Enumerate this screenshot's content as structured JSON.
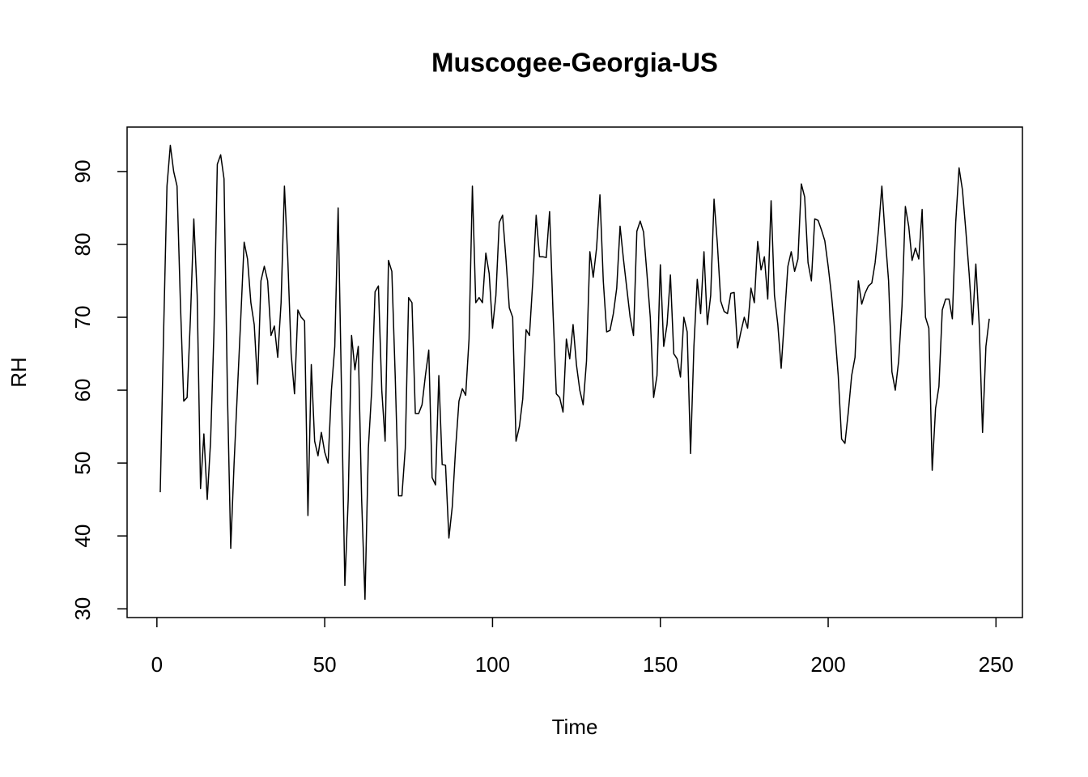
{
  "chart_data": {
    "type": "line",
    "title": "Muscogee-Georgia-US",
    "xlabel": "Time",
    "ylabel": "RH",
    "color": "#000000",
    "xlim": [
      -8.88,
      257.88
    ],
    "ylim": [
      28.8,
      96.1
    ],
    "xticks": [
      0,
      50,
      100,
      150,
      200,
      250
    ],
    "yticks": [
      30,
      40,
      50,
      60,
      70,
      80,
      90
    ],
    "x": [
      1,
      2,
      3,
      4,
      5,
      6,
      7,
      8,
      9,
      10,
      11,
      12,
      13,
      14,
      15,
      16,
      17,
      18,
      19,
      20,
      21,
      22,
      23,
      24,
      25,
      26,
      27,
      28,
      29,
      30,
      31,
      32,
      33,
      34,
      35,
      36,
      37,
      38,
      39,
      40,
      41,
      42,
      43,
      44,
      45,
      46,
      47,
      48,
      49,
      50,
      51,
      52,
      53,
      54,
      55,
      56,
      57,
      58,
      59,
      60,
      61,
      62,
      63,
      64,
      65,
      66,
      67,
      68,
      69,
      70,
      71,
      72,
      73,
      74,
      75,
      76,
      77,
      78,
      79,
      80,
      81,
      82,
      83,
      84,
      85,
      86,
      87,
      88,
      89,
      90,
      91,
      92,
      93,
      94,
      95,
      96,
      97,
      98,
      99,
      100,
      101,
      102,
      103,
      104,
      105,
      106,
      107,
      108,
      109,
      110,
      111,
      112,
      113,
      114,
      115,
      116,
      117,
      118,
      119,
      120,
      121,
      122,
      123,
      124,
      125,
      126,
      127,
      128,
      129,
      130,
      131,
      132,
      133,
      134,
      135,
      136,
      137,
      138,
      139,
      140,
      141,
      142,
      143,
      144,
      145,
      146,
      147,
      148,
      149,
      150,
      151,
      152,
      153,
      154,
      155,
      156,
      157,
      158,
      159,
      160,
      161,
      162,
      163,
      164,
      165,
      166,
      167,
      168,
      169,
      170,
      171,
      172,
      173,
      174,
      175,
      176,
      177,
      178,
      179,
      180,
      181,
      182,
      183,
      184,
      185,
      186,
      187,
      188,
      189,
      190,
      191,
      192,
      193,
      194,
      195,
      196,
      197,
      198,
      199,
      200,
      201,
      202,
      203,
      204,
      205,
      206,
      207,
      208,
      209,
      210,
      211,
      212,
      213,
      214,
      215,
      216,
      217,
      218,
      219,
      220,
      221,
      222,
      223,
      224,
      225,
      226,
      227,
      228,
      229,
      230,
      231,
      232,
      233,
      234,
      235,
      236,
      237,
      238,
      239,
      240,
      241,
      242,
      243,
      244,
      245,
      246,
      247,
      248
    ],
    "values": [
      46,
      68,
      88,
      93.6,
      90,
      88,
      72,
      58.5,
      59,
      70,
      83.5,
      73,
      46.5,
      54,
      45,
      53,
      68,
      91,
      92.3,
      89,
      60,
      38.3,
      50,
      60,
      70,
      80.3,
      78,
      72,
      69,
      60.8,
      75,
      77,
      75,
      67.5,
      68.8,
      64.5,
      72,
      88,
      78,
      65,
      59.5,
      71,
      70,
      69.5,
      42.8,
      63.5,
      53,
      51,
      54.2,
      51.5,
      50,
      60,
      66,
      85,
      60,
      33.2,
      45,
      67.5,
      62.8,
      66,
      45,
      31.3,
      52,
      60,
      73.5,
      74.3,
      60,
      53,
      77.8,
      76.3,
      62,
      45.5,
      45.5,
      52,
      72.7,
      72,
      56.8,
      56.8,
      58,
      62,
      65.5,
      48,
      47,
      62,
      49.8,
      49.7,
      39.7,
      44,
      52,
      58.5,
      60.2,
      59.3,
      67,
      88,
      72,
      72.7,
      72,
      78.8,
      76,
      68.5,
      73,
      83,
      84,
      78,
      71.3,
      70,
      53,
      55,
      58.8,
      68.3,
      67.5,
      75,
      84,
      78.3,
      78.3,
      78.2,
      84.5,
      71,
      59.5,
      59,
      57,
      67,
      64.3,
      69,
      63.5,
      60,
      58,
      64,
      79,
      75.5,
      79.5,
      86.8,
      75,
      68,
      68.2,
      70.5,
      74,
      82.5,
      78,
      74,
      70,
      67.5,
      81.8,
      83.2,
      81.7,
      76,
      70,
      59,
      62,
      77.2,
      66,
      69,
      75.8,
      65,
      64.3,
      61.8,
      70,
      68,
      51.3,
      66,
      75.2,
      70.5,
      79,
      69,
      73,
      86.2,
      80,
      72.2,
      70.8,
      70.5,
      73.3,
      73.4,
      65.8,
      68,
      70,
      68.5,
      74,
      72,
      80.4,
      76.5,
      78.3,
      72.5,
      86,
      73,
      69,
      63,
      70,
      77,
      79,
      76.3,
      78,
      88.3,
      86.5,
      77.5,
      75,
      83.5,
      83.3,
      82,
      80.5,
      77,
      73,
      68,
      62,
      53.3,
      52.7,
      57,
      62,
      64.5,
      75,
      71.8,
      73.3,
      74.3,
      74.7,
      77.5,
      82,
      88,
      81,
      75,
      62.5,
      60,
      64,
      71.5,
      85.2,
      82.5,
      77.8,
      79.5,
      78,
      84.8,
      70,
      68.5,
      49,
      57.5,
      60.5,
      71,
      72.5,
      72.5,
      69.8,
      83,
      90.5,
      87.5,
      82,
      76,
      69,
      77.3,
      69,
      54.2,
      66,
      69.8
    ]
  }
}
